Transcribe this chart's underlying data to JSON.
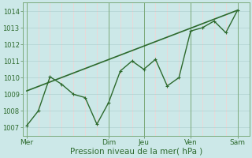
{
  "background_color": "#cce8e8",
  "plot_bg": "#cce8e8",
  "line_color": "#2d6a2d",
  "xlabel_text": "Pression niveau de la mer( hPa )",
  "xtick_labels": [
    "Mer",
    "Dim",
    "Jeu",
    "Ven",
    "Sam"
  ],
  "xtick_positions": [
    0,
    42,
    60,
    84,
    108
  ],
  "yticks": [
    1007,
    1008,
    1009,
    1010,
    1011,
    1012,
    1013,
    1014
  ],
  "ylim": [
    1006.5,
    1014.5
  ],
  "xlim": [
    -2,
    114
  ],
  "data_x": [
    0,
    6,
    12,
    18,
    24,
    30,
    36,
    42,
    48,
    54,
    60,
    66,
    72,
    78,
    84,
    90,
    96,
    102,
    108
  ],
  "data_y": [
    1007.1,
    1008.0,
    1010.05,
    1009.6,
    1009.0,
    1008.8,
    1007.2,
    1008.5,
    1010.4,
    1011.0,
    1010.5,
    1011.1,
    1009.5,
    1010.0,
    1012.8,
    1013.0,
    1013.4,
    1012.7,
    1014.05
  ],
  "trend_x": [
    0,
    108
  ],
  "trend_y": [
    1009.2,
    1014.05
  ],
  "vline_major": [
    0,
    42,
    60,
    84,
    108
  ],
  "vline_minor_step": 6,
  "hline_color": "#aacccc",
  "vline_major_color": "#7aaa7a",
  "vline_minor_color": "#ffcccc",
  "ytick_fontsize": 6,
  "xtick_fontsize": 6.5,
  "xlabel_fontsize": 7.5,
  "linewidth": 1.0,
  "trend_linewidth": 1.2
}
